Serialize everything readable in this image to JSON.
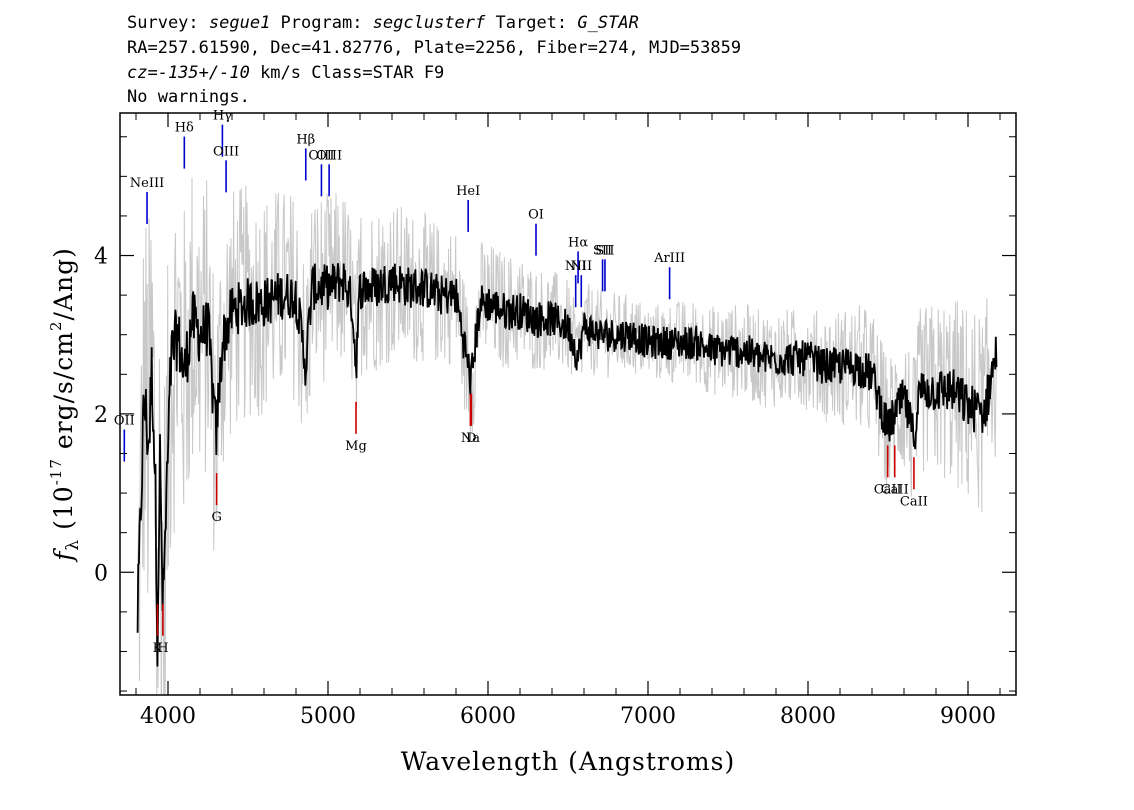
{
  "header": {
    "survey_label": "Survey: ",
    "survey": "segue1",
    "program_label": " Program: ",
    "program": "segclusterf",
    "target_label": " Target: ",
    "target": "G_STAR",
    "line2": "RA=257.61590, Dec=41.82776, Plate=2256, Fiber=274, MJD=53859",
    "cz": "cz=-135+/-10",
    "cz_rest": " km/s Class=STAR F9",
    "warnings": "No warnings."
  },
  "chart_data": {
    "type": "line",
    "xlabel": "Wavelength (Angstroms)",
    "ylabel": "f_λ (10^-17 erg/s/cm^2/Ang)",
    "xlim": [
      3700,
      9300
    ],
    "ylim": [
      -1.55,
      5.8
    ],
    "x_ticks": [
      4000,
      5000,
      6000,
      7000,
      8000,
      9000
    ],
    "y_ticks": [
      0,
      2,
      4
    ],
    "grid": false,
    "colors": {
      "flux": "#000000",
      "error": "#c8c8c8",
      "emission": "#0000cc",
      "absorption": "#cc0000"
    },
    "series": [
      {
        "style": "error-envelope",
        "x": [
          3800,
          3850,
          3900,
          3950,
          4000,
          4100,
          4200,
          4300,
          4400,
          4500,
          4700,
          5000,
          5500,
          6000,
          6500,
          7000,
          7500,
          8000,
          8500,
          9000,
          9200
        ],
        "values": [
          2.2,
          2.8,
          3.0,
          3.0,
          2.5,
          2.2,
          2.0,
          1.9,
          1.6,
          1.5,
          1.4,
          1.2,
          1.0,
          0.8,
          0.6,
          0.5,
          0.6,
          0.65,
          0.9,
          1.3,
          1.3
        ]
      },
      {
        "style": "flux",
        "x": [
          3810,
          3850,
          3880,
          3900,
          3920,
          3934,
          3950,
          3968,
          3990,
          4020,
          4060,
          4102,
          4150,
          4200,
          4250,
          4300,
          4340,
          4400,
          4500,
          4600,
          4700,
          4800,
          4861,
          4900,
          5000,
          5100,
          5150,
          5175,
          5200,
          5300,
          5400,
          5500,
          5600,
          5700,
          5800,
          5893,
          5950,
          6000,
          6100,
          6200,
          6300,
          6400,
          6500,
          6563,
          6600,
          6700,
          6800,
          6900,
          7000,
          7100,
          7200,
          7300,
          7400,
          7500,
          7600,
          7700,
          7800,
          7900,
          8000,
          8100,
          8200,
          8300,
          8400,
          8498,
          8542,
          8600,
          8662,
          8700,
          8800,
          8900,
          9000,
          9100,
          9180
        ],
        "values": [
          -0.6,
          2.2,
          1.6,
          2.6,
          1.2,
          -0.7,
          1.4,
          -0.5,
          0.9,
          2.7,
          3.0,
          2.5,
          3.2,
          3.0,
          3.1,
          1.7,
          2.9,
          3.3,
          3.4,
          3.4,
          3.5,
          3.5,
          2.6,
          3.6,
          3.6,
          3.7,
          3.4,
          2.6,
          3.6,
          3.6,
          3.7,
          3.6,
          3.6,
          3.5,
          3.5,
          2.4,
          3.4,
          3.4,
          3.3,
          3.3,
          3.2,
          3.2,
          3.1,
          2.7,
          3.1,
          3.0,
          3.0,
          3.0,
          2.9,
          2.9,
          2.9,
          2.9,
          2.8,
          2.8,
          2.8,
          2.7,
          2.7,
          2.7,
          2.7,
          2.6,
          2.6,
          2.6,
          2.5,
          1.8,
          2.0,
          2.2,
          1.7,
          2.3,
          2.3,
          2.3,
          2.1,
          2.0,
          2.8
        ]
      }
    ],
    "emission_lines": [
      {
        "label": "NeIII",
        "x": 3869,
        "y": 4.6
      },
      {
        "label": "Hδ",
        "x": 4102,
        "y": 5.3
      },
      {
        "label": "Hγ",
        "x": 4340,
        "y": 5.45
      },
      {
        "label": "OIII",
        "x": 4363,
        "y": 5.0
      },
      {
        "label": "Hβ",
        "x": 4861,
        "y": 5.15
      },
      {
        "label": "OIII",
        "x": 4959,
        "y": 4.95
      },
      {
        "label": "OIII",
        "x": 5007,
        "y": 4.95
      },
      {
        "label": "HeI",
        "x": 5876,
        "y": 4.5
      },
      {
        "label": "OI",
        "x": 6300,
        "y": 4.2
      },
      {
        "label": "NII",
        "x": 6548,
        "y": 3.55
      },
      {
        "label": "Hα",
        "x": 6563,
        "y": 3.85
      },
      {
        "label": "NII",
        "x": 6583,
        "y": 3.55
      },
      {
        "label": "SII",
        "x": 6716,
        "y": 3.75
      },
      {
        "label": "SII",
        "x": 6731,
        "y": 3.75
      },
      {
        "label": "ArIII",
        "x": 7135,
        "y": 3.65
      },
      {
        "label": "OII",
        "x": 3727,
        "y": 1.6
      }
    ],
    "absorption_lines": [
      {
        "label": "K",
        "x": 3934,
        "y": -0.6
      },
      {
        "label": "H",
        "x": 3968,
        "y": -0.6
      },
      {
        "label": "G",
        "x": 4304,
        "y": 1.05
      },
      {
        "label": "Mg",
        "x": 5175,
        "y": 1.95
      },
      {
        "label": "Na",
        "x": 5890,
        "y": 2.05
      },
      {
        "label": "D",
        "x": 5896,
        "y": 2.05
      },
      {
        "label": "CaII",
        "x": 8498,
        "y": 1.4
      },
      {
        "label": "CaII",
        "x": 8542,
        "y": 1.4
      },
      {
        "label": "CaII",
        "x": 8662,
        "y": 1.25
      }
    ]
  }
}
